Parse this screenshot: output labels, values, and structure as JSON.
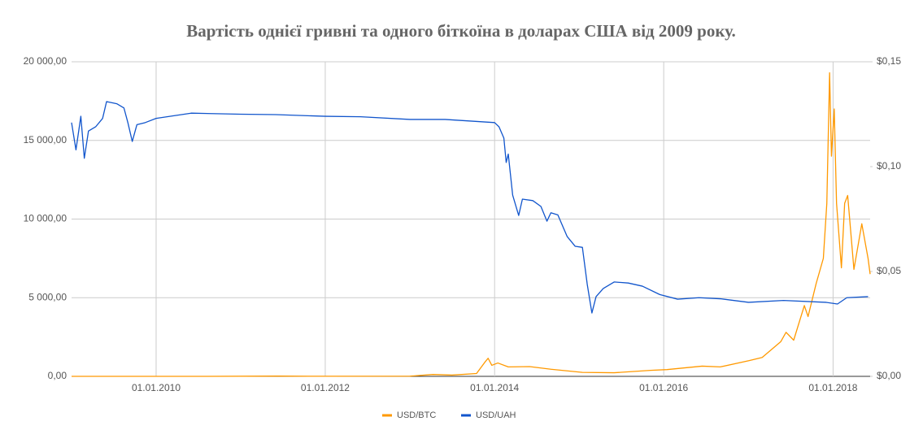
{
  "chart_data": {
    "type": "line",
    "title": "Вартість однієї гривні та одного біткоїна в доларах США від 2009 року.",
    "xlim": [
      "2009-01-01",
      "2018-06-10"
    ],
    "xticks": [
      {
        "value": "2010-01-01",
        "label": "01.01.2010"
      },
      {
        "value": "2012-01-01",
        "label": "01.01.2012"
      },
      {
        "value": "2014-01-01",
        "label": "01.01.2014"
      },
      {
        "value": "2016-01-01",
        "label": "01.01.2016"
      },
      {
        "value": "2018-01-01",
        "label": "01.01.2018"
      }
    ],
    "ylim": [
      0,
      20000
    ],
    "yticks": [
      {
        "value": 0,
        "label": "0,00"
      },
      {
        "value": 5000,
        "label": "5 000,00"
      },
      {
        "value": 10000,
        "label": "10 000,00"
      },
      {
        "value": 15000,
        "label": "15 000,00"
      },
      {
        "value": 20000,
        "label": "20 000,00"
      }
    ],
    "y2lim": [
      0,
      0.15
    ],
    "y2ticks": [
      {
        "value": 0,
        "label": "$0,00"
      },
      {
        "value": 0.05,
        "label": "$0,05"
      },
      {
        "value": 0.1,
        "label": "$0,10"
      },
      {
        "value": 0.15,
        "label": "$0,15"
      }
    ],
    "grid": true,
    "legend": "bottom",
    "series": [
      {
        "name": "USD/BTC",
        "color": "#ff9900",
        "x": [
          "2009-01-01",
          "2010-07-15",
          "2011-06-10",
          "2012-01-01",
          "2013-01-01",
          "2013-04-10",
          "2013-07-01",
          "2013-10-15",
          "2013-11-20",
          "2013-12-04",
          "2013-12-20",
          "2014-01-15",
          "2014-03-01",
          "2014-06-01",
          "2014-09-01",
          "2015-01-15",
          "2015-06-01",
          "2015-11-05",
          "2016-01-15",
          "2016-06-15",
          "2016-09-01",
          "2017-01-04",
          "2017-03-01",
          "2017-05-20",
          "2017-06-12",
          "2017-07-15",
          "2017-08-30",
          "2017-09-15",
          "2017-10-20",
          "2017-11-20",
          "2017-12-05",
          "2017-12-17",
          "2017-12-25",
          "2018-01-06",
          "2018-01-16",
          "2018-02-06",
          "2018-02-20",
          "2018-03-05",
          "2018-04-01",
          "2018-05-05",
          "2018-06-01",
          "2018-06-10"
        ],
        "values": [
          0,
          0.1,
          15,
          5,
          13,
          120,
          80,
          180,
          900,
          1150,
          700,
          850,
          600,
          620,
          450,
          250,
          230,
          380,
          430,
          650,
          600,
          1000,
          1200,
          2200,
          2800,
          2300,
          4500,
          3800,
          5900,
          7500,
          11000,
          19300,
          14000,
          17000,
          11000,
          6900,
          11000,
          11500,
          6800,
          9700,
          7500,
          6500
        ]
      },
      {
        "name": "USD/UAH",
        "color": "#1155cc",
        "axis": "y2",
        "x": [
          "2009-01-01",
          "2009-01-20",
          "2009-02-10",
          "2009-02-25",
          "2009-03-15",
          "2009-04-15",
          "2009-05-15",
          "2009-06-01",
          "2009-07-15",
          "2009-08-15",
          "2009-09-01",
          "2009-09-20",
          "2009-10-10",
          "2009-11-15",
          "2010-01-01",
          "2010-06-01",
          "2011-01-01",
          "2011-06-01",
          "2012-01-01",
          "2012-06-01",
          "2013-01-01",
          "2013-06-01",
          "2014-01-01",
          "2014-01-20",
          "2014-02-10",
          "2014-02-20",
          "2014-03-01",
          "2014-03-20",
          "2014-04-15",
          "2014-05-01",
          "2014-06-15",
          "2014-07-20",
          "2014-08-15",
          "2014-09-01",
          "2014-10-01",
          "2014-11-10",
          "2014-12-15",
          "2015-01-15",
          "2015-02-05",
          "2015-02-25",
          "2015-03-15",
          "2015-04-15",
          "2015-06-01",
          "2015-08-01",
          "2015-10-01",
          "2015-12-15",
          "2016-03-01",
          "2016-06-01",
          "2016-09-01",
          "2017-01-01",
          "2017-06-01",
          "2017-12-01",
          "2018-01-20",
          "2018-03-01",
          "2018-06-01"
        ],
        "values": [
          0.121,
          0.108,
          0.124,
          0.104,
          0.117,
          0.119,
          0.123,
          0.131,
          0.13,
          0.128,
          0.121,
          0.112,
          0.12,
          0.121,
          0.123,
          0.1255,
          0.125,
          0.1248,
          0.124,
          0.1238,
          0.1225,
          0.1225,
          0.121,
          0.119,
          0.1136,
          0.102,
          0.106,
          0.0864,
          0.0767,
          0.0845,
          0.0838,
          0.081,
          0.074,
          0.078,
          0.077,
          0.0667,
          0.062,
          0.0615,
          0.0438,
          0.0302,
          0.038,
          0.0419,
          0.045,
          0.0445,
          0.043,
          0.039,
          0.0368,
          0.0375,
          0.037,
          0.0353,
          0.0362,
          0.0353,
          0.0345,
          0.0375,
          0.038
        ]
      }
    ]
  }
}
